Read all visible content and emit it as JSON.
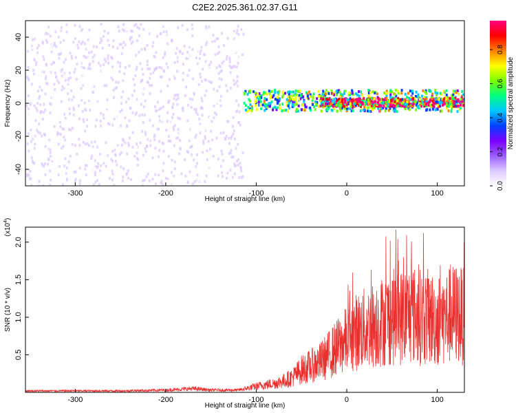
{
  "title": "C2E2.2025.361.02.37.G11",
  "chart_data": [
    {
      "type": "heatmap",
      "xlabel": "Height of straight line (km)",
      "ylabel": "Frequency (Hz)",
      "xlim": [
        -355,
        130
      ],
      "ylim": [
        -50,
        50
      ],
      "xticks": [
        -300,
        -200,
        -100,
        0,
        100
      ],
      "yticks": [
        -40,
        -20,
        0,
        20,
        40
      ],
      "colorbar": {
        "label": "Normalized spectral amplitude",
        "range": [
          0,
          0.97
        ],
        "ticks": [
          0.0,
          0.2,
          0.4,
          0.6,
          0.8
        ],
        "tick_labels": [
          "0.0",
          "0.2",
          "0.4",
          "0.6",
          "0.8"
        ],
        "colors": [
          "#ffffff",
          "#dccaff",
          "#9a5cff",
          "#7a00ff",
          "#0040ff",
          "#00c8ff",
          "#00ff80",
          "#7cff00",
          "#ffff00",
          "#ff8000",
          "#ff0000",
          "#ff0080"
        ]
      },
      "regions": [
        {
          "desc": "sparse low-amplitude noise",
          "x": [
            -355,
            -115
          ],
          "y": [
            -50,
            48
          ],
          "amplitude": 0.1
        },
        {
          "desc": "signal band",
          "x": [
            -115,
            130
          ],
          "y": [
            -5,
            8
          ],
          "amplitude": 0.6
        },
        {
          "desc": "peak band",
          "x": [
            -30,
            130
          ],
          "y": [
            -2,
            3
          ],
          "amplitude": 0.9
        }
      ]
    },
    {
      "type": "line",
      "xlabel": "Height of straight line (km)",
      "ylabel": "SNR (10 * v/v)",
      "scale_note": "(x10",
      "scale_exp": "4",
      "xlim": [
        -355,
        130
      ],
      "ylim": [
        0,
        2.2
      ],
      "xticks": [
        -300,
        -200,
        -100,
        0,
        100
      ],
      "yticks": [
        0.5,
        1.0,
        1.5,
        2.0
      ],
      "ytick_labels": [
        "0.5",
        "1.0",
        "1.5",
        "2.0"
      ],
      "color": "#e8302e",
      "series": [
        {
          "x": [
            -355,
            -300,
            -250,
            -200,
            -170,
            -150,
            -120,
            -100,
            -90,
            -80,
            -70,
            -60,
            -50,
            -40,
            -30,
            -20,
            -10,
            0,
            10,
            20,
            30,
            40,
            50,
            60,
            70,
            80,
            90,
            100,
            110,
            120,
            130
          ],
          "y": [
            0.02,
            0.02,
            0.02,
            0.03,
            0.05,
            0.03,
            0.03,
            0.08,
            0.1,
            0.12,
            0.15,
            0.2,
            0.3,
            0.35,
            0.4,
            0.5,
            0.6,
            0.7,
            0.8,
            0.85,
            0.9,
            0.95,
            1.0,
            1.0,
            1.05,
            1.0,
            1.0,
            0.95,
            1.0,
            1.05,
            1.0
          ]
        }
      ]
    }
  ]
}
